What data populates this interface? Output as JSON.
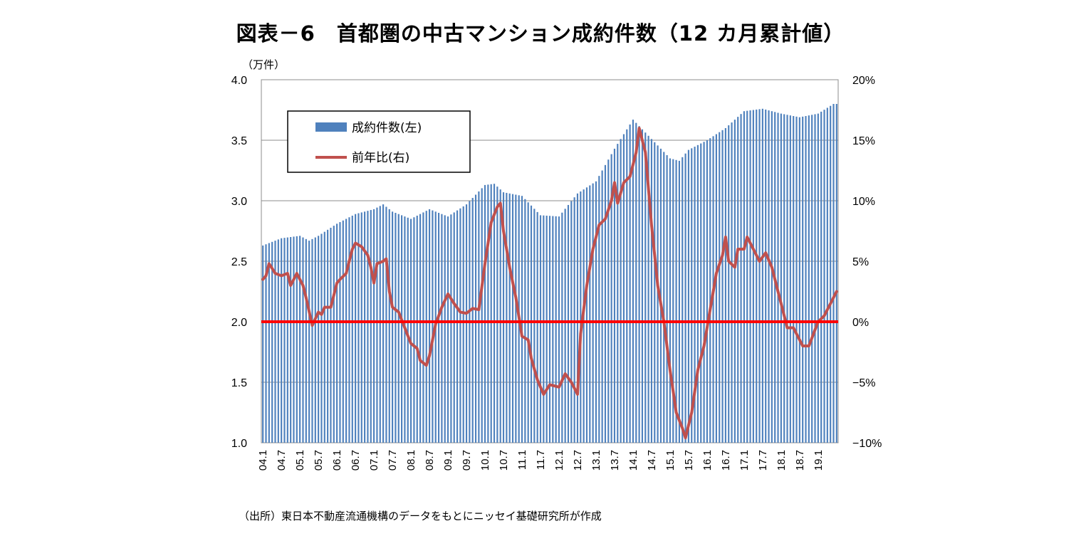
{
  "chart_data": {
    "type": "bar+line",
    "title": "図表－6　首都圏の中古マンション成約件数（12 カ月累計値）",
    "y_left_unit": "（万件）",
    "source": "（出所）東日本不動産流通機構のデータをもとにニッセイ基礎研究所が作成",
    "y_left_ticks": [
      "4.0",
      "3.5",
      "3.0",
      "2.5",
      "2.0",
      "1.5",
      "1.0"
    ],
    "y_right_ticks": [
      "20%",
      "15%",
      "10%",
      "5%",
      "0%",
      "−5%",
      "−10%"
    ],
    "ylim_left": [
      1.0,
      4.0
    ],
    "ylim_right": [
      -10,
      20
    ],
    "x_tick_labels": [
      "04.1",
      "04.7",
      "05.1",
      "05.7",
      "06.1",
      "06.7",
      "07.1",
      "07.7",
      "08.1",
      "08.7",
      "09.1",
      "09.7",
      "10.1",
      "10.7",
      "11.1",
      "11.7",
      "12.1",
      "12.7",
      "13.1",
      "13.7",
      "14.1",
      "14.7",
      "15.1",
      "15.7",
      "16.1",
      "16.7",
      "17.1",
      "17.7",
      "18.1",
      "18.7",
      "19.1"
    ],
    "months_start": "2004.01",
    "series": [
      {
        "name": "成約件数(左)",
        "type": "bar",
        "color": "#4f81bd",
        "anchor_points": [
          [
            "04.1",
            2.63
          ],
          [
            "04.7",
            2.69
          ],
          [
            "05.1",
            2.71
          ],
          [
            "05.4",
            2.67
          ],
          [
            "05.7",
            2.71
          ],
          [
            "06.1",
            2.81
          ],
          [
            "06.7",
            2.89
          ],
          [
            "07.1",
            2.93
          ],
          [
            "07.4",
            2.97
          ],
          [
            "07.7",
            2.91
          ],
          [
            "08.1",
            2.85
          ],
          [
            "08.7",
            2.93
          ],
          [
            "09.1",
            2.87
          ],
          [
            "09.7",
            2.97
          ],
          [
            "10.1",
            3.13
          ],
          [
            "10.4",
            3.14
          ],
          [
            "10.7",
            3.07
          ],
          [
            "11.1",
            3.04
          ],
          [
            "11.7",
            2.88
          ],
          [
            "12.1",
            2.87
          ],
          [
            "12.7",
            3.06
          ],
          [
            "13.1",
            3.16
          ],
          [
            "13.7",
            3.43
          ],
          [
            "14.1",
            3.67
          ],
          [
            "14.7",
            3.51
          ],
          [
            "15.1",
            3.35
          ],
          [
            "15.4",
            3.33
          ],
          [
            "15.7",
            3.42
          ],
          [
            "16.1",
            3.5
          ],
          [
            "16.7",
            3.6
          ],
          [
            "17.1",
            3.74
          ],
          [
            "17.7",
            3.76
          ],
          [
            "18.1",
            3.72
          ],
          [
            "18.7",
            3.69
          ],
          [
            "19.1",
            3.72
          ],
          [
            "19.6",
            3.8
          ]
        ]
      },
      {
        "name": "前年比(右)",
        "type": "line",
        "color": "#c0504d",
        "anchor_points": [
          [
            "04.1",
            3.5
          ],
          [
            "04.2",
            3.8
          ],
          [
            "04.3",
            4.8
          ],
          [
            "04.5",
            4.0
          ],
          [
            "04.7",
            3.8
          ],
          [
            "04.9",
            4.0
          ],
          [
            "04.10",
            3.0
          ],
          [
            "04.12",
            4.0
          ],
          [
            "05.2",
            3.0
          ],
          [
            "05.3",
            2.0
          ],
          [
            "05.5",
            -0.3
          ],
          [
            "05.7",
            0.8
          ],
          [
            "05.8",
            0.6
          ],
          [
            "05.9",
            1.2
          ],
          [
            "05.11",
            1.2
          ],
          [
            "06.1",
            3.2
          ],
          [
            "06.2",
            3.5
          ],
          [
            "06.4",
            4.0
          ],
          [
            "06.6",
            6.0
          ],
          [
            "06.7",
            6.5
          ],
          [
            "06.9",
            6.2
          ],
          [
            "06.11",
            5.5
          ],
          [
            "06.12",
            4.5
          ],
          [
            "07.1",
            3.2
          ],
          [
            "07.2",
            4.8
          ],
          [
            "07.4",
            5.0
          ],
          [
            "07.5",
            5.2
          ],
          [
            "07.6",
            2.5
          ],
          [
            "07.7",
            1.2
          ],
          [
            "07.9",
            0.8
          ],
          [
            "07.11",
            -0.5
          ],
          [
            "08.1",
            -1.8
          ],
          [
            "08.3",
            -2.2
          ],
          [
            "08.4",
            -3.2
          ],
          [
            "08.6",
            -3.6
          ],
          [
            "08.7",
            -2.8
          ],
          [
            "08.9",
            -0.2
          ],
          [
            "08.11",
            1.2
          ],
          [
            "09.1",
            2.3
          ],
          [
            "09.3",
            1.5
          ],
          [
            "09.5",
            0.8
          ],
          [
            "09.7",
            0.7
          ],
          [
            "09.9",
            1.1
          ],
          [
            "09.11",
            1.0
          ],
          [
            "10.1",
            4.8
          ],
          [
            "10.3",
            8.2
          ],
          [
            "10.5",
            9.5
          ],
          [
            "10.6",
            9.8
          ],
          [
            "10.7",
            7.5
          ],
          [
            "10.9",
            4.5
          ],
          [
            "10.11",
            2.0
          ],
          [
            "11.1",
            -1.2
          ],
          [
            "11.3",
            -1.5
          ],
          [
            "11.4",
            -3.0
          ],
          [
            "11.6",
            -4.8
          ],
          [
            "11.8",
            -6.0
          ],
          [
            "11.10",
            -5.2
          ],
          [
            "12.1",
            -5.4
          ],
          [
            "12.3",
            -4.3
          ],
          [
            "12.5",
            -5.0
          ],
          [
            "12.7",
            -6.0
          ],
          [
            "12.8",
            -1.0
          ],
          [
            "12.10",
            3.0
          ],
          [
            "12.12",
            6.0
          ],
          [
            "13.2",
            8.0
          ],
          [
            "13.4",
            8.5
          ],
          [
            "13.6",
            10.0
          ],
          [
            "13.7",
            11.5
          ],
          [
            "13.8",
            9.8
          ],
          [
            "13.10",
            11.5
          ],
          [
            "13.12",
            12.0
          ],
          [
            "14.2",
            14.0
          ],
          [
            "14.3",
            16.0
          ],
          [
            "14.5",
            14.0
          ],
          [
            "14.7",
            8.0
          ],
          [
            "14.9",
            3.0
          ],
          [
            "14.11",
            0.0
          ],
          [
            "15.1",
            -4.0
          ],
          [
            "15.3",
            -7.5
          ],
          [
            "15.5",
            -8.8
          ],
          [
            "15.6",
            -9.6
          ],
          [
            "15.8",
            -7.5
          ],
          [
            "15.10",
            -4.0
          ],
          [
            "15.12",
            -2.0
          ],
          [
            "16.2",
            1.0
          ],
          [
            "16.4",
            4.0
          ],
          [
            "16.6",
            5.5
          ],
          [
            "16.7",
            7.0
          ],
          [
            "16.8",
            5.0
          ],
          [
            "16.10",
            4.5
          ],
          [
            "16.11",
            6.0
          ],
          [
            "17.1",
            6.0
          ],
          [
            "17.2",
            7.0
          ],
          [
            "17.4",
            6.0
          ],
          [
            "17.6",
            5.0
          ],
          [
            "17.8",
            5.7
          ],
          [
            "17.10",
            4.5
          ],
          [
            "18.1",
            1.5
          ],
          [
            "18.3",
            -0.5
          ],
          [
            "18.5",
            -0.5
          ],
          [
            "18.7",
            -1.5
          ],
          [
            "18.8",
            -2.0
          ],
          [
            "18.10",
            -2.0
          ],
          [
            "19.1",
            0.0
          ],
          [
            "19.3",
            0.5
          ],
          [
            "19.7",
            2.5
          ]
        ]
      }
    ],
    "reference_line": {
      "value": 0,
      "axis": "right",
      "color": "#ff0000"
    },
    "legend": {
      "placement": "top-left"
    }
  }
}
